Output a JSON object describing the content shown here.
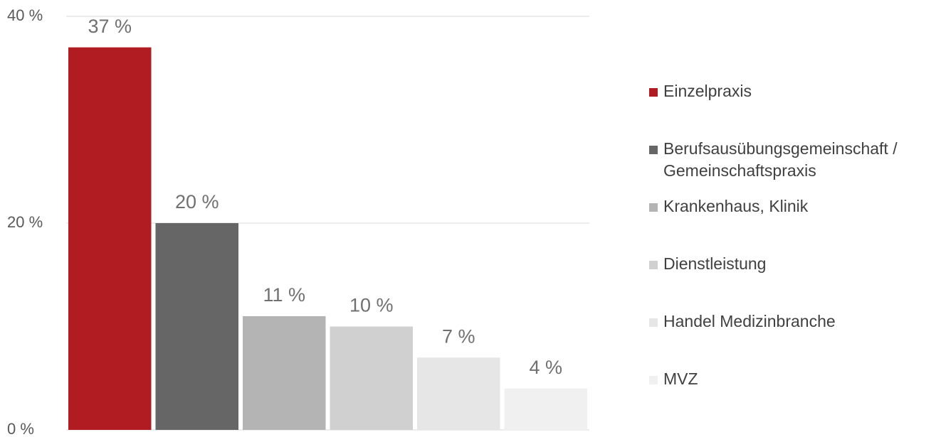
{
  "chart_data": {
    "type": "bar",
    "categories": [
      "Einzelpraxis",
      "Berufsausübungsgemeinschaft / Gemeinschaftspraxis",
      "Krankenhaus, Klinik",
      "Dienstleistung",
      "Handel Medizinbranche",
      "MVZ"
    ],
    "values": [
      37,
      20,
      11,
      10,
      7,
      4
    ],
    "value_labels": [
      "37 %",
      "20 %",
      "11 %",
      "10 %",
      "7 %",
      "4 %"
    ],
    "colors": [
      "#b01c22",
      "#666666",
      "#b4b4b4",
      "#d0d0d0",
      "#e6e6e6",
      "#f0f0f0"
    ],
    "ylim": [
      0,
      40
    ],
    "yticks": [
      {
        "value": 0,
        "label": "0 %"
      },
      {
        "value": 20,
        "label": "20 %"
      },
      {
        "value": 40,
        "label": "40 %"
      }
    ],
    "grid": true
  }
}
